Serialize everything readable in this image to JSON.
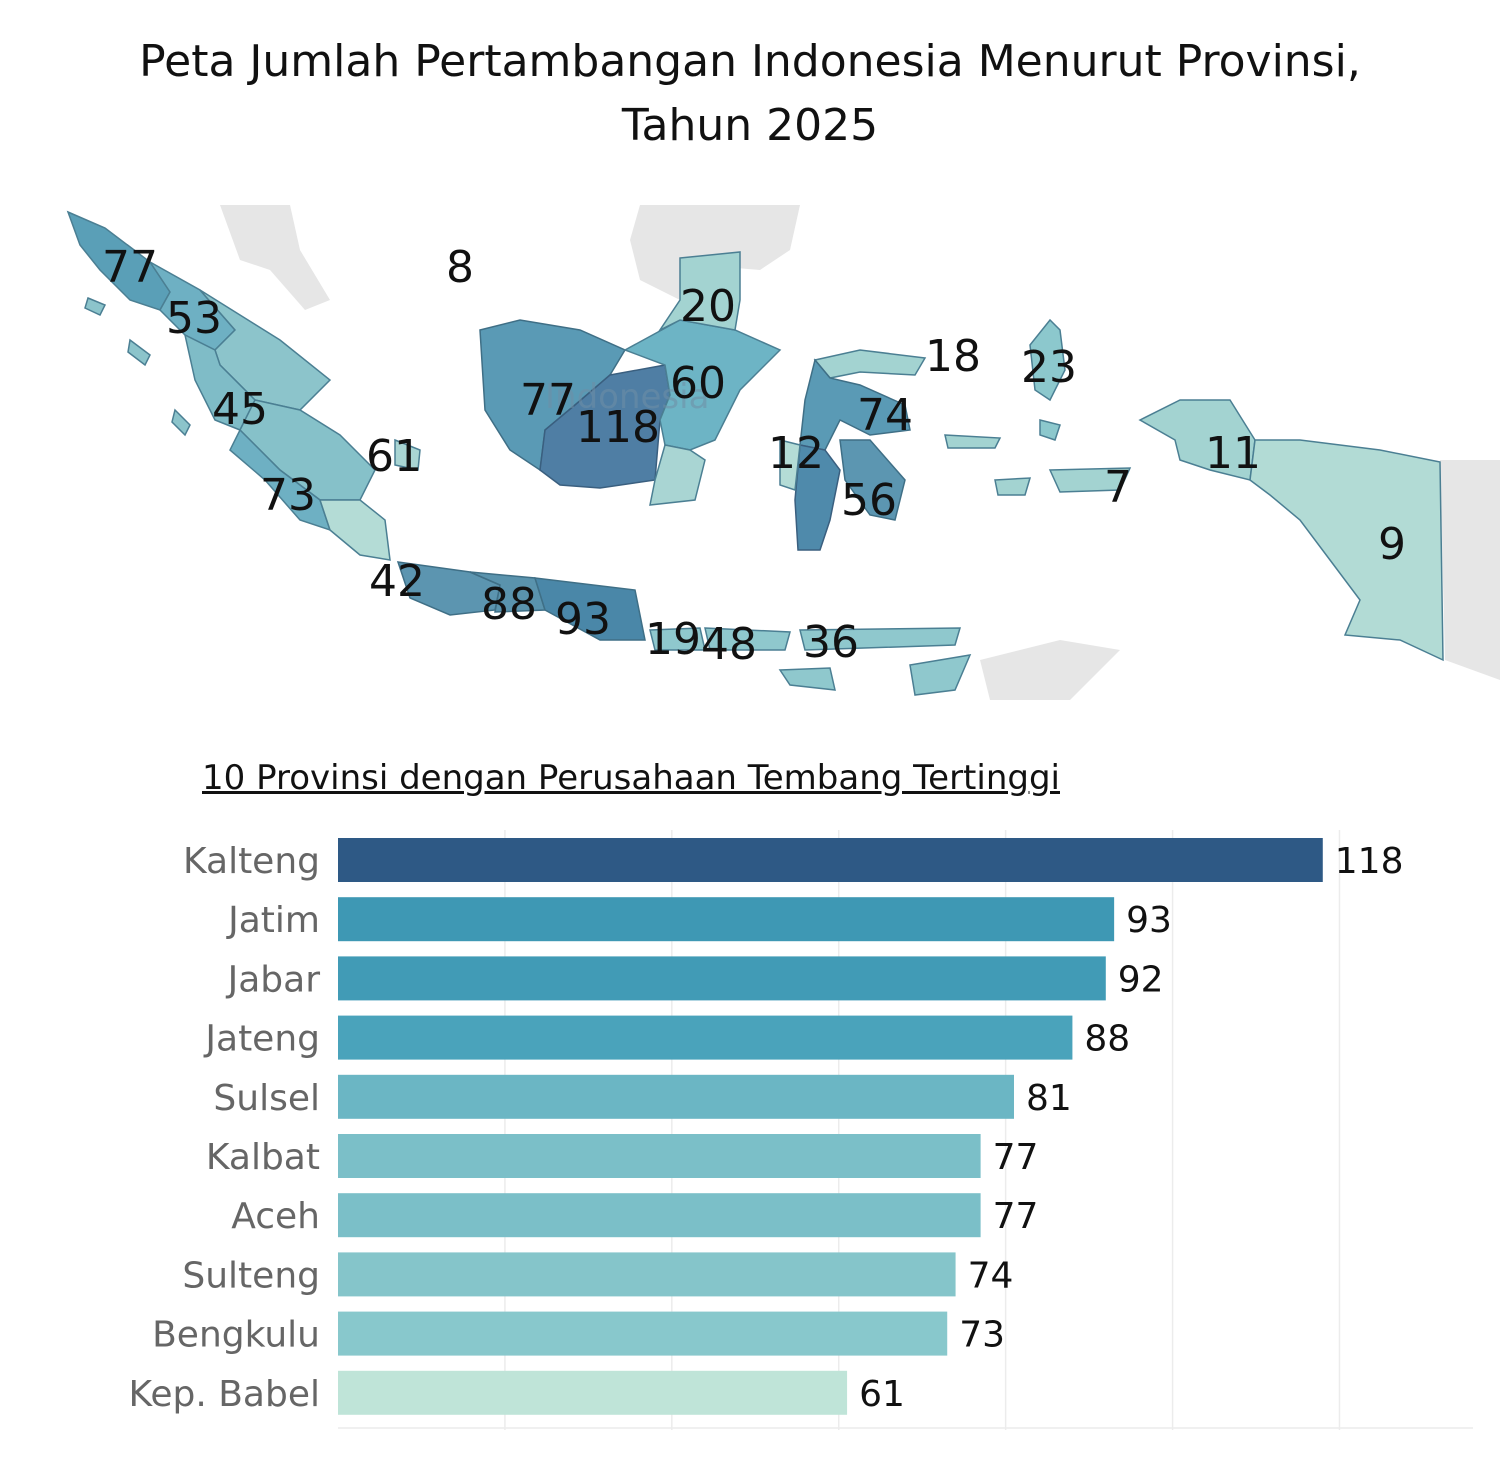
{
  "title_line1": "Peta Jumlah Pertambangan Indonesia Menurut Provinsi,",
  "title_line2": "Tahun 2025",
  "map": {
    "watermark": "Indonesia",
    "labels": [
      "77",
      "53",
      "45",
      "61",
      "73",
      "42",
      "88",
      "93",
      "19",
      "48",
      "36",
      "8",
      "20",
      "60",
      "77",
      "118",
      "12",
      "74",
      "56",
      "18",
      "23",
      "7",
      "11",
      "9"
    ]
  },
  "chart_data": {
    "type": "bar",
    "orientation": "horizontal",
    "title": "10 Provinsi dengan Perusahaan Tembang Tertinggi",
    "categories": [
      "Kalteng",
      "Jatim",
      "Jabar",
      "Jateng",
      "Sulsel",
      "Kalbat",
      "Aceh",
      "Sulteng",
      "Bengkulu",
      "Kep. Babel"
    ],
    "values": [
      118,
      93,
      92,
      88,
      81,
      77,
      77,
      74,
      73,
      61
    ],
    "colors": [
      "#2e5985",
      "#3e98b4",
      "#419bb6",
      "#4aa3bb",
      "#6bb6c4",
      "#7bbfc8",
      "#7bbfc8",
      "#85c5ca",
      "#88c8cc",
      "#bfe4d8"
    ],
    "xlim": [
      0,
      136
    ],
    "grid": true
  }
}
